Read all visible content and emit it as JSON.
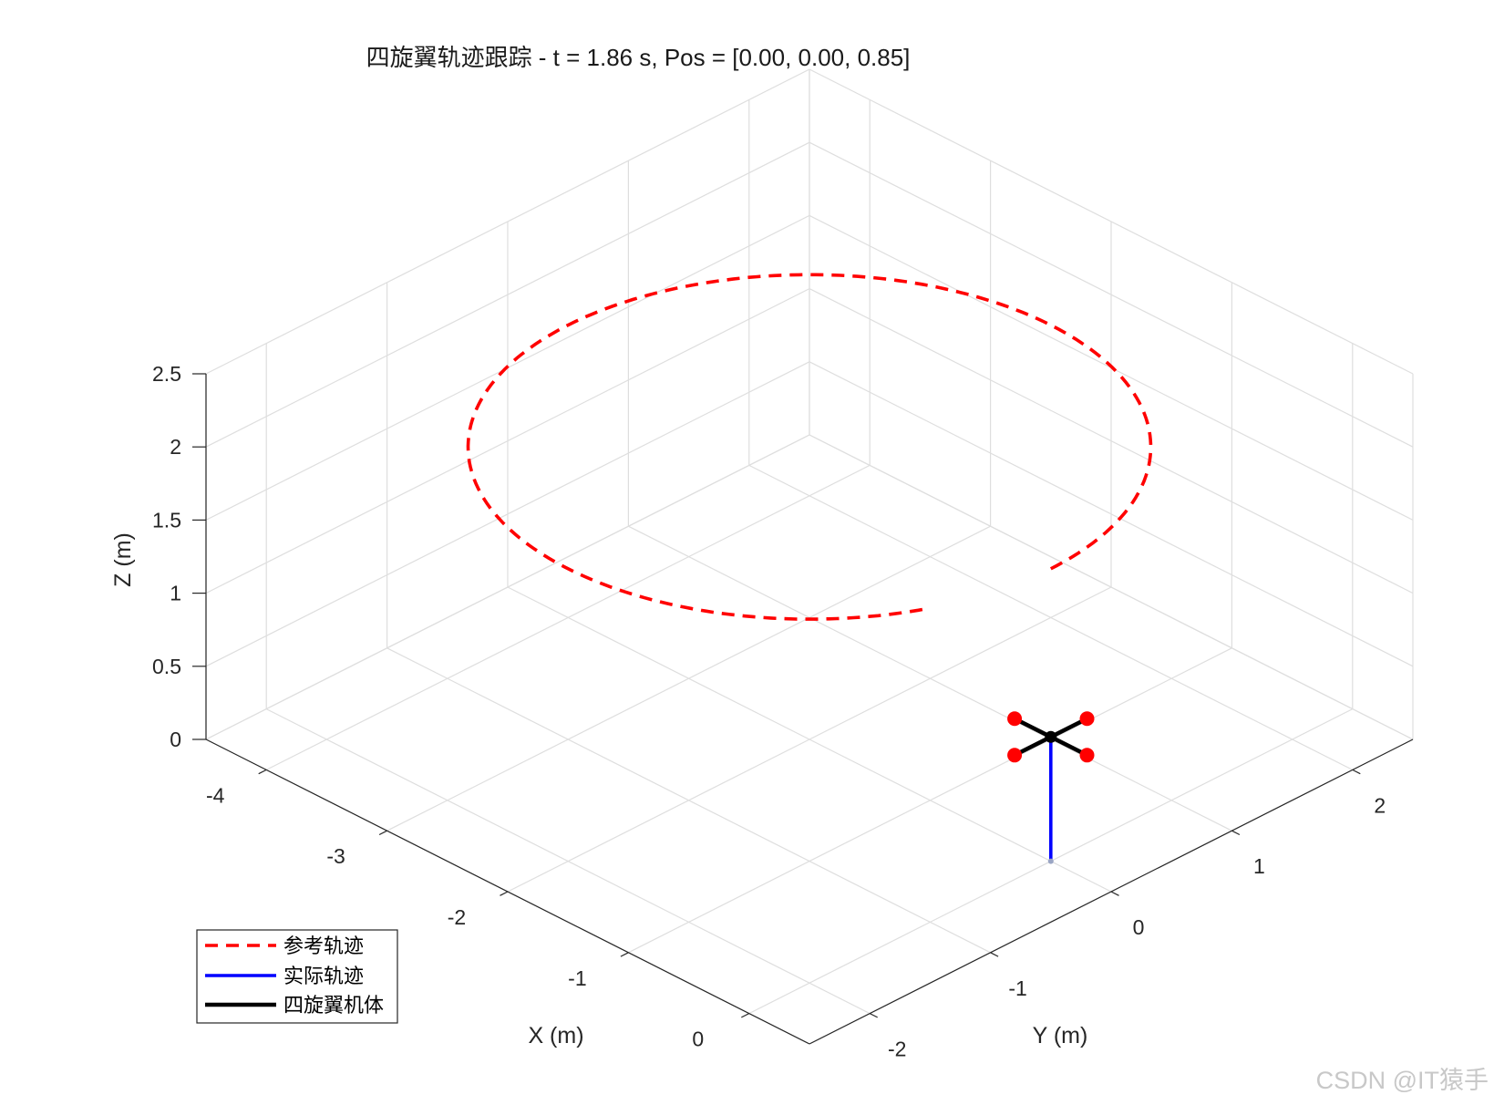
{
  "chart_data": {
    "type": "line",
    "projection": "3d-isometric",
    "title": "四旋翼轨迹跟踪 - t = 1.86 s, Pos = [0.00, 0.00, 0.85]",
    "xlabel": "X (m)",
    "ylabel": "Y (m)",
    "zlabel": "Z (m)",
    "xlim": [
      -4.5,
      0.5
    ],
    "ylim": [
      -2.5,
      2.5
    ],
    "zlim": [
      0,
      2.5
    ],
    "xticks": [
      "-4",
      "-3",
      "-2",
      "-1",
      "0"
    ],
    "yticks": [
      "-2",
      "-1",
      "0",
      "1",
      "2"
    ],
    "zticks": [
      "0",
      "0.5",
      "1",
      "1.5",
      "2",
      "2.5"
    ],
    "grid": true,
    "legend_position": "bottom-left",
    "series": [
      {
        "name": "参考轨迹",
        "style": "dashed",
        "color": "#ff0000",
        "center": [
          -2,
          0,
          2
        ],
        "radius": 2,
        "z": 2,
        "angle_start_deg": 0,
        "angle_end_deg": 335
      },
      {
        "name": "实际轨迹",
        "style": "solid",
        "color": "#0000ff",
        "x": [
          0,
          0
        ],
        "y": [
          0,
          0
        ],
        "z": [
          0,
          0.85
        ]
      },
      {
        "name": "四旋翼机体",
        "style": "solid",
        "color": "#000000",
        "position": [
          0,
          0,
          0.85
        ],
        "arm_length": 0.3,
        "rotor_color": "#ff0000"
      }
    ]
  },
  "watermark": "CSDN @IT猿手"
}
